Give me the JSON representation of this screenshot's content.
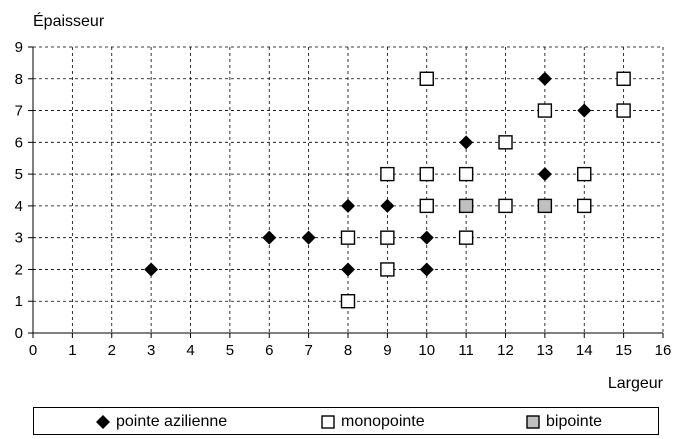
{
  "chart_data": {
    "type": "scatter",
    "title": "",
    "ylabel": "Épaisseur",
    "xlabel": "Largeur",
    "xlim": [
      0,
      16
    ],
    "ylim": [
      0,
      9
    ],
    "x_ticks": [
      "0",
      "1",
      "2",
      "3",
      "4",
      "5",
      "6",
      "7",
      "8",
      "9",
      "10",
      "11",
      "12",
      "13",
      "14",
      "15",
      "16"
    ],
    "y_ticks": [
      "0",
      "1",
      "2",
      "3",
      "4",
      "5",
      "6",
      "7",
      "8",
      "9"
    ],
    "grid": true,
    "legend_placement": "bottom",
    "series": [
      {
        "name": "pointe azilienne",
        "marker": "diamond",
        "color": "#000000",
        "points": [
          [
            3,
            2
          ],
          [
            6,
            3
          ],
          [
            7,
            3
          ],
          [
            8,
            2
          ],
          [
            8,
            4
          ],
          [
            9,
            4
          ],
          [
            10,
            2
          ],
          [
            10,
            3
          ],
          [
            11,
            6
          ],
          [
            13,
            5
          ],
          [
            13,
            8
          ],
          [
            14,
            7
          ]
        ]
      },
      {
        "name": "monopointe",
        "marker": "square",
        "color": "#ffffff",
        "points": [
          [
            8,
            1
          ],
          [
            8,
            3
          ],
          [
            9,
            2
          ],
          [
            9,
            3
          ],
          [
            9,
            5
          ],
          [
            10,
            4
          ],
          [
            10,
            5
          ],
          [
            10,
            8
          ],
          [
            11,
            3
          ],
          [
            11,
            5
          ],
          [
            12,
            4
          ],
          [
            12,
            6
          ],
          [
            13,
            7
          ],
          [
            14,
            4
          ],
          [
            14,
            5
          ],
          [
            15,
            7
          ],
          [
            15,
            8
          ]
        ]
      },
      {
        "name": "bipointe",
        "marker": "square",
        "color": "#c0c0c0",
        "points": [
          [
            11,
            4
          ],
          [
            13,
            4
          ]
        ]
      }
    ]
  }
}
